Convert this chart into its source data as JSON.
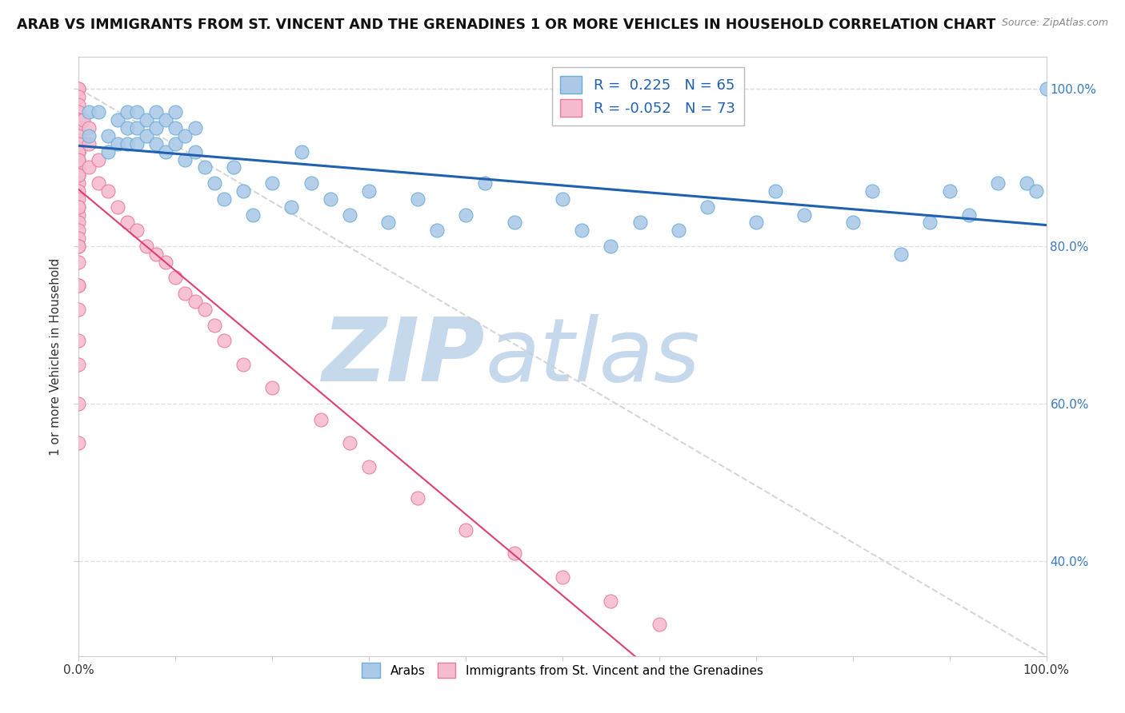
{
  "title": "ARAB VS IMMIGRANTS FROM ST. VINCENT AND THE GRENADINES 1 OR MORE VEHICLES IN HOUSEHOLD CORRELATION CHART",
  "source": "Source: ZipAtlas.com",
  "ylabel": "1 or more Vehicles in Household",
  "xlim": [
    0.0,
    1.0
  ],
  "ylim": [
    0.28,
    1.04
  ],
  "xticks": [
    0.0,
    0.1,
    0.2,
    0.3,
    0.4,
    0.5,
    0.6,
    0.7,
    0.8,
    0.9,
    1.0
  ],
  "xtick_labels": [
    "0.0%",
    "",
    "",
    "",
    "",
    "",
    "",
    "",
    "",
    "",
    "100.0%"
  ],
  "yticks": [
    0.4,
    0.6,
    0.8,
    1.0
  ],
  "ytick_labels": [
    "40.0%",
    "60.0%",
    "80.0%",
    "100.0%"
  ],
  "r_arab": 0.225,
  "n_arab": 65,
  "r_vincent": -0.052,
  "n_vincent": 73,
  "arab_color": "#adc9e8",
  "arab_edge": "#6aaed6",
  "vincent_color": "#f5bcd0",
  "vincent_edge": "#e87aa0",
  "legend_arab_label": "Arabs",
  "legend_vincent_label": "Immigrants from St. Vincent and the Grenadines",
  "watermark_zip": "ZIP",
  "watermark_atlas": "atlas",
  "watermark_color_zip": "#c5d8ec",
  "watermark_color_atlas": "#c5d8ec",
  "background_color": "#ffffff",
  "title_fontsize": 12.5,
  "arab_line_color": "#2060b0",
  "vincent_line_color": "#e04070",
  "diag_color": "#cccccc",
  "arab_scatter": {
    "x": [
      0.01,
      0.01,
      0.02,
      0.03,
      0.03,
      0.04,
      0.04,
      0.05,
      0.05,
      0.05,
      0.06,
      0.06,
      0.06,
      0.07,
      0.07,
      0.08,
      0.08,
      0.08,
      0.09,
      0.09,
      0.1,
      0.1,
      0.1,
      0.11,
      0.11,
      0.12,
      0.12,
      0.13,
      0.14,
      0.15,
      0.16,
      0.17,
      0.18,
      0.2,
      0.22,
      0.23,
      0.24,
      0.26,
      0.28,
      0.3,
      0.32,
      0.35,
      0.37,
      0.4,
      0.42,
      0.45,
      0.5,
      0.52,
      0.55,
      0.58,
      0.62,
      0.65,
      0.7,
      0.72,
      0.75,
      0.8,
      0.82,
      0.85,
      0.88,
      0.9,
      0.92,
      0.95,
      0.98,
      0.99,
      1.0
    ],
    "y": [
      0.97,
      0.94,
      0.97,
      0.94,
      0.92,
      0.96,
      0.93,
      0.97,
      0.95,
      0.93,
      0.97,
      0.95,
      0.93,
      0.96,
      0.94,
      0.97,
      0.95,
      0.93,
      0.96,
      0.92,
      0.97,
      0.95,
      0.93,
      0.94,
      0.91,
      0.95,
      0.92,
      0.9,
      0.88,
      0.86,
      0.9,
      0.87,
      0.84,
      0.88,
      0.85,
      0.92,
      0.88,
      0.86,
      0.84,
      0.87,
      0.83,
      0.86,
      0.82,
      0.84,
      0.88,
      0.83,
      0.86,
      0.82,
      0.8,
      0.83,
      0.82,
      0.85,
      0.83,
      0.87,
      0.84,
      0.83,
      0.87,
      0.79,
      0.83,
      0.87,
      0.84,
      0.88,
      0.88,
      0.87,
      1.0
    ]
  },
  "vincent_scatter": {
    "x": [
      0.0,
      0.0,
      0.0,
      0.0,
      0.0,
      0.0,
      0.0,
      0.0,
      0.0,
      0.0,
      0.0,
      0.0,
      0.0,
      0.0,
      0.0,
      0.0,
      0.0,
      0.0,
      0.0,
      0.0,
      0.0,
      0.0,
      0.0,
      0.0,
      0.0,
      0.0,
      0.0,
      0.0,
      0.0,
      0.0,
      0.0,
      0.0,
      0.0,
      0.0,
      0.0,
      0.0,
      0.0,
      0.0,
      0.0,
      0.0,
      0.0,
      0.0,
      0.0,
      0.005,
      0.01,
      0.01,
      0.01,
      0.02,
      0.02,
      0.03,
      0.04,
      0.05,
      0.06,
      0.07,
      0.08,
      0.09,
      0.1,
      0.11,
      0.12,
      0.13,
      0.14,
      0.15,
      0.17,
      0.2,
      0.25,
      0.28,
      0.3,
      0.35,
      0.4,
      0.45,
      0.5,
      0.55,
      0.6
    ],
    "y": [
      1.0,
      1.0,
      0.99,
      0.98,
      0.97,
      0.96,
      0.96,
      0.95,
      0.95,
      0.94,
      0.93,
      0.93,
      0.92,
      0.92,
      0.91,
      0.9,
      0.89,
      0.88,
      0.87,
      0.86,
      0.85,
      0.84,
      0.83,
      0.82,
      0.81,
      0.8,
      0.78,
      0.75,
      0.72,
      0.68,
      0.65,
      0.6,
      0.55,
      0.96,
      0.95,
      0.94,
      0.93,
      0.92,
      0.91,
      0.89,
      0.85,
      0.8,
      0.75,
      0.96,
      0.95,
      0.93,
      0.9,
      0.91,
      0.88,
      0.87,
      0.85,
      0.83,
      0.82,
      0.8,
      0.79,
      0.78,
      0.76,
      0.74,
      0.73,
      0.72,
      0.7,
      0.68,
      0.65,
      0.62,
      0.58,
      0.55,
      0.52,
      0.48,
      0.44,
      0.41,
      0.38,
      0.35,
      0.32
    ]
  }
}
